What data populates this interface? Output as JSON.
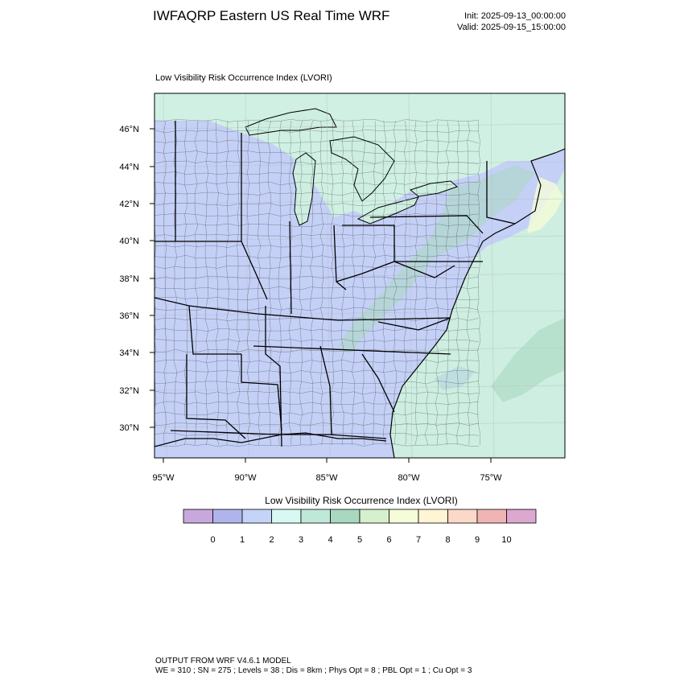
{
  "header": {
    "title": "IWFAQRP Eastern US Real Time WRF",
    "init": "Init: 2025-09-13_00:00:00",
    "valid": "Valid: 2025-09-15_15:00:00"
  },
  "map": {
    "field_label": "Low Visibility Risk Occurrence Index   (LVORI)",
    "lat_labels": [
      "46°N",
      "44°N",
      "42°N",
      "40°N",
      "38°N",
      "36°N",
      "34°N",
      "32°N",
      "30°N"
    ],
    "lon_labels": [
      "95°W",
      "90°W",
      "85°W",
      "80°W",
      "75°W"
    ],
    "colors": {
      "ocean": "#cdeee0",
      "land": "#c4d0f6",
      "high_terrain": "#a9d9c0",
      "boundaries": "#000000"
    }
  },
  "colorbar": {
    "title": "Low Visibility Risk Occurrence Index  (LVORI)",
    "colors": [
      "#c8a8dc",
      "#b0b4ec",
      "#c4d4f8",
      "#d8f8f4",
      "#c0e8d8",
      "#a8d8c0",
      "#d4f0cc",
      "#f4fcd8",
      "#fff4d4",
      "#fcd8c8",
      "#f0b4b4",
      "#dca8d0"
    ],
    "labels": [
      "0",
      "1",
      "2",
      "3",
      "4",
      "5",
      "6",
      "7",
      "8",
      "9",
      "10"
    ]
  },
  "footer": {
    "line1": "OUTPUT FROM WRF V4.6.1 MODEL",
    "line2": "WE = 310 ; SN = 275 ; Levels = 38 ; Dis = 8km ; Phys Opt = 8 ; PBL Opt = 1 ; Cu Opt = 3"
  }
}
